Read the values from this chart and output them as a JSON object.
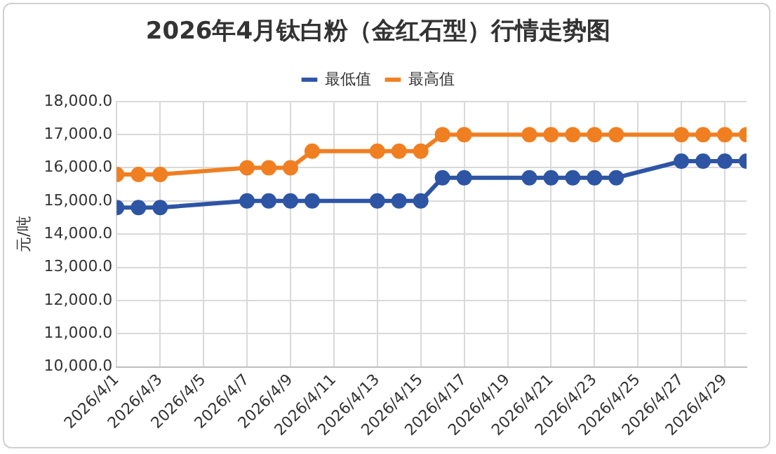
{
  "chart_data": {
    "type": "line",
    "title": "2026年4月钛白粉（金红石型）行情走势图",
    "ylabel": "元/吨",
    "x": [
      "2026-04-01",
      "2026-04-02",
      "2026-04-03",
      "2026-04-07",
      "2026-04-08",
      "2026-04-09",
      "2026-04-10",
      "2026-04-13",
      "2026-04-14",
      "2026-04-15",
      "2026-04-16",
      "2026-04-17",
      "2026-04-20",
      "2026-04-21",
      "2026-04-22",
      "2026-04-23",
      "2026-04-24",
      "2026-04-27",
      "2026-04-28",
      "2026-04-29",
      "2026-04-30"
    ],
    "series": [
      {
        "name": "最低值",
        "color": "#2e54a4",
        "values": [
          14800,
          14800,
          14800,
          15000,
          15000,
          15000,
          15000,
          15000,
          15000,
          15000,
          15700,
          15700,
          15700,
          15700,
          15700,
          15700,
          15700,
          16200,
          16200,
          16200,
          16200
        ]
      },
      {
        "name": "最高值",
        "color": "#f07f22",
        "values": [
          15800,
          15800,
          15800,
          16000,
          16000,
          16000,
          16500,
          16500,
          16500,
          16500,
          17000,
          17000,
          17000,
          17000,
          17000,
          17000,
          17000,
          17000,
          17000,
          17000,
          17000
        ]
      }
    ],
    "xlim": [
      "2026-04-01",
      "2026-04-30"
    ],
    "xticks": [
      {
        "value": "2026-04-01",
        "label": "2026/4/1"
      },
      {
        "value": "2026-04-03",
        "label": "2026/4/3"
      },
      {
        "value": "2026-04-05",
        "label": "2026/4/5"
      },
      {
        "value": "2026-04-07",
        "label": "2026/4/7"
      },
      {
        "value": "2026-04-09",
        "label": "2026/4/9"
      },
      {
        "value": "2026-04-11",
        "label": "2026/4/11"
      },
      {
        "value": "2026-04-13",
        "label": "2026/4/13"
      },
      {
        "value": "2026-04-15",
        "label": "2026/4/15"
      },
      {
        "value": "2026-04-17",
        "label": "2026/4/17"
      },
      {
        "value": "2026-04-19",
        "label": "2026/4/19"
      },
      {
        "value": "2026-04-21",
        "label": "2026/4/21"
      },
      {
        "value": "2026-04-23",
        "label": "2026/4/23"
      },
      {
        "value": "2026-04-25",
        "label": "2026/4/25"
      },
      {
        "value": "2026-04-27",
        "label": "2026/4/27"
      },
      {
        "value": "2026-04-29",
        "label": "2026/4/29"
      }
    ],
    "ylim": [
      10000,
      18000
    ],
    "yticks": [
      {
        "value": 10000,
        "label": "10,000.0"
      },
      {
        "value": 11000,
        "label": "11,000.0"
      },
      {
        "value": 12000,
        "label": "12,000.0"
      },
      {
        "value": 13000,
        "label": "13,000.0"
      },
      {
        "value": 14000,
        "label": "14,000.0"
      },
      {
        "value": 15000,
        "label": "15,000.0"
      },
      {
        "value": 16000,
        "label": "16,000.0"
      },
      {
        "value": 17000,
        "label": "17,000.0"
      },
      {
        "value": 18000,
        "label": "18,000.0"
      }
    ],
    "grid": true,
    "legend": "top",
    "marker": "circle",
    "line_style": "solid"
  }
}
